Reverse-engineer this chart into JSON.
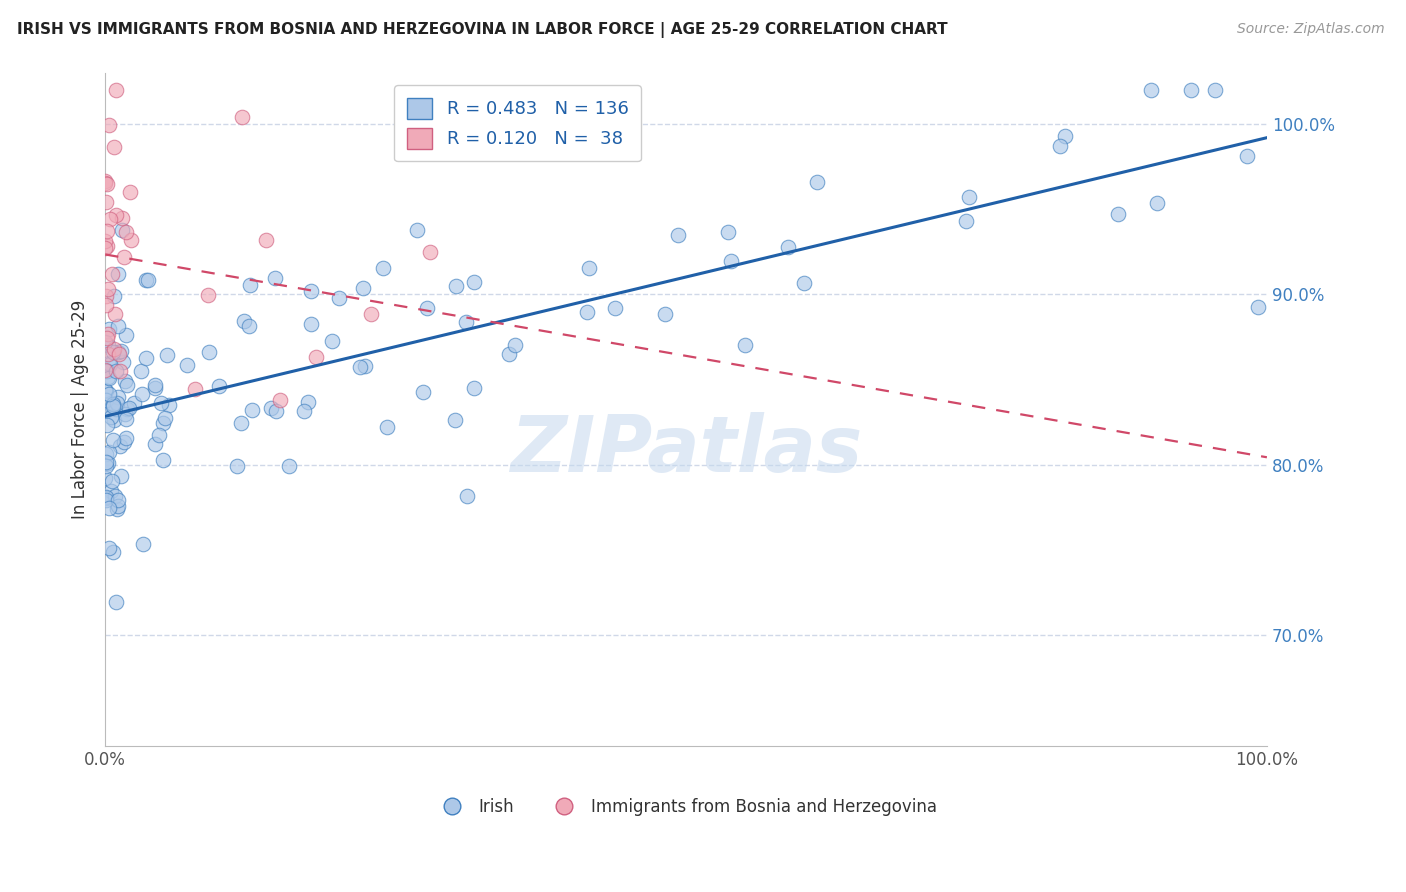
{
  "title": "IRISH VS IMMIGRANTS FROM BOSNIA AND HERZEGOVINA IN LABOR FORCE | AGE 25-29 CORRELATION CHART",
  "source": "Source: ZipAtlas.com",
  "ylabel": "In Labor Force | Age 25-29",
  "xlim": [
    0.0,
    1.0
  ],
  "ylim": [
    0.635,
    1.03
  ],
  "yticks": [
    0.7,
    0.8,
    0.9,
    1.0
  ],
  "ytick_labels": [
    "70.0%",
    "80.0%",
    "90.0%",
    "100.0%"
  ],
  "xtick_labels": [
    "0.0%",
    "100.0%"
  ],
  "blue_R": 0.483,
  "blue_N": 136,
  "pink_R": 0.12,
  "pink_N": 38,
  "blue_fill": "#adc8e8",
  "blue_edge": "#4080c0",
  "blue_line": "#2060a8",
  "pink_fill": "#f0aab8",
  "pink_edge": "#d06080",
  "pink_line": "#d04868",
  "legend_label_blue": "Irish",
  "legend_label_pink": "Immigrants from Bosnia and Herzegovina",
  "watermark": "ZIPatlas",
  "bg": "#ffffff",
  "grid_color": "#d0d8e8",
  "right_tick_color": "#4080c0"
}
